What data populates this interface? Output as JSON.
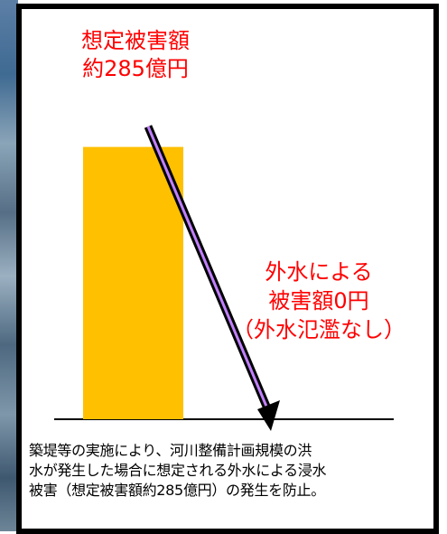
{
  "chart_data": {
    "type": "bar",
    "categories": [
      "",
      ""
    ],
    "series": [
      {
        "values": [
          285,
          0
        ]
      }
    ],
    "ylim": [
      0,
      313
    ],
    "annotations": {
      "before": {
        "lines": [
          "想定被害額",
          "約285億円"
        ]
      },
      "after": {
        "lines": [
          "外水による",
          "被害額0円",
          "（外水氾濫なし）"
        ]
      }
    },
    "caption": [
      "築堤等の実施により、河川整備計画規模の洪",
      "水が発生した場合に想定される外水による浸水",
      "被害（想定被害額約285億円）の発生を防止。"
    ]
  },
  "colors": {
    "bar": "#ffc000",
    "annotation": "#ff0000",
    "arrow_fill": "#000000",
    "arrow_stripe": "#c080ff",
    "frame": "#000000",
    "baseline": "#000000"
  }
}
